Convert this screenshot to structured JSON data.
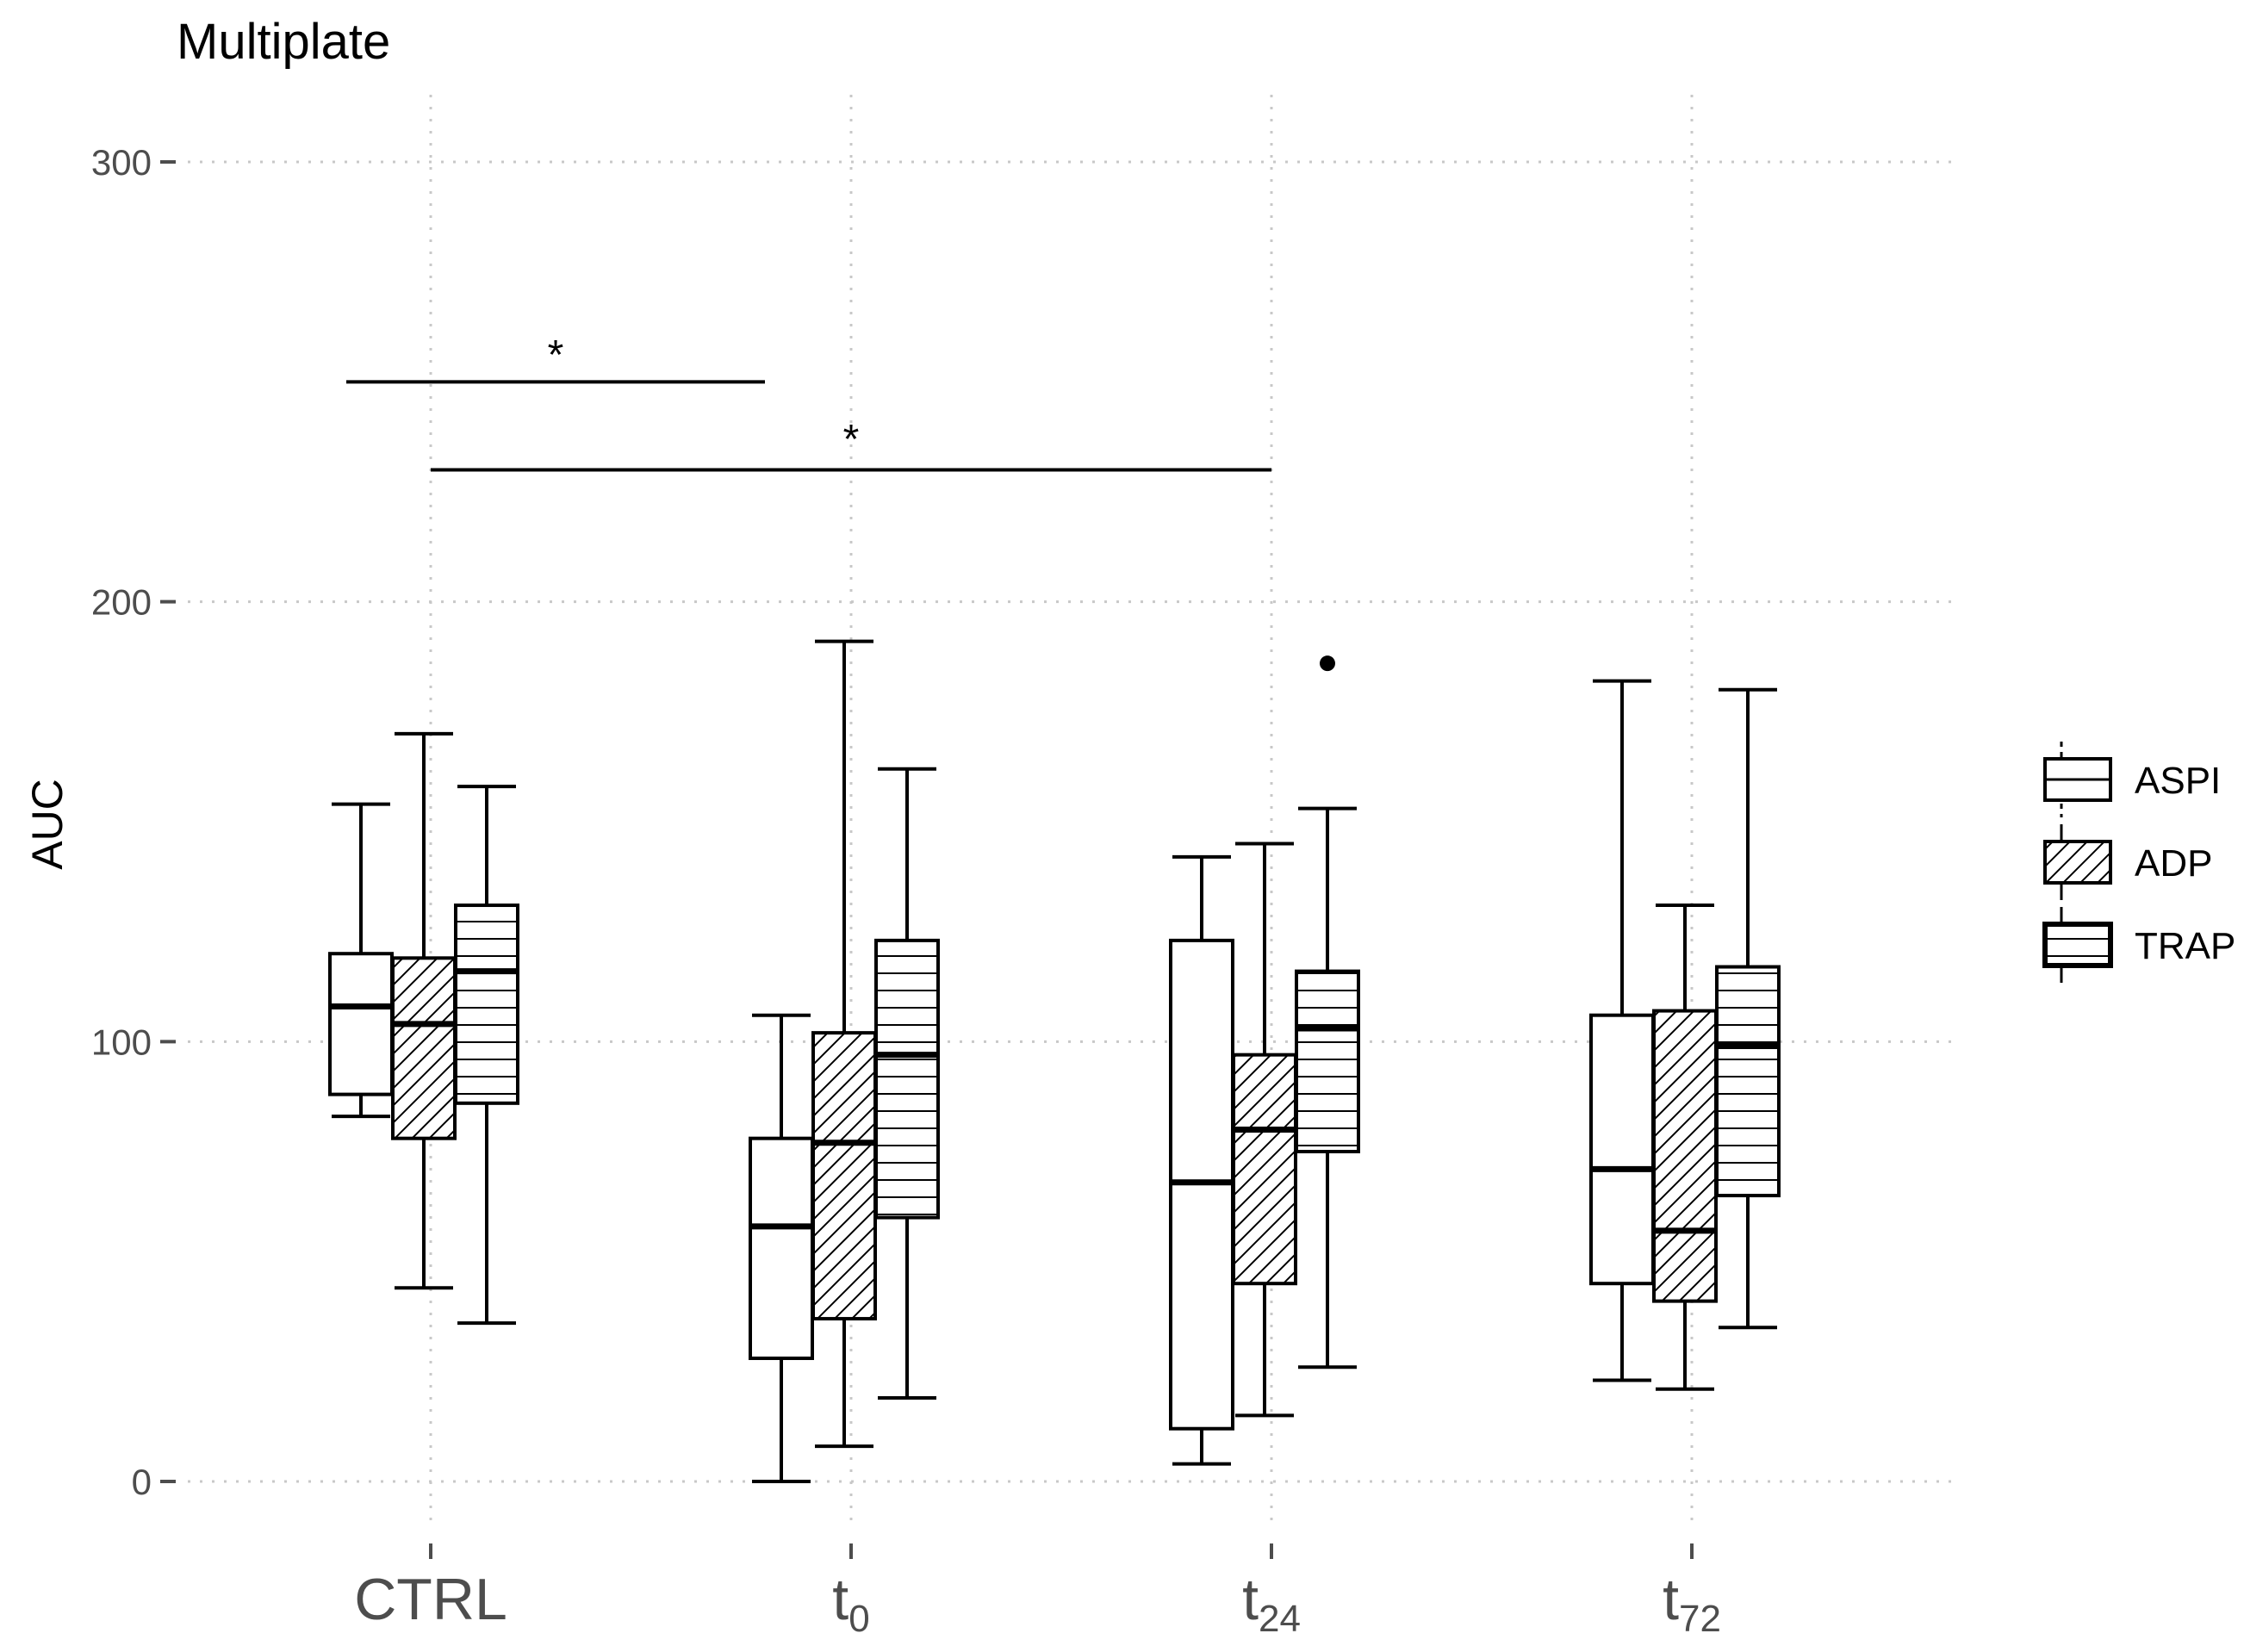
{
  "chart_data": {
    "type": "boxplot",
    "title": "Multiplate",
    "ylabel": "AUC",
    "xlabel": "",
    "ylim": [
      -12,
      318
    ],
    "yticks": [
      0,
      100,
      200,
      300
    ],
    "grid": true,
    "legend_position": "right",
    "groups": [
      {
        "label": "CTRL",
        "base": "CTRL",
        "sub": ""
      },
      {
        "label": "t0",
        "base": "t",
        "sub": "0"
      },
      {
        "label": "t24",
        "base": "t",
        "sub": "24"
      },
      {
        "label": "t72",
        "base": "t",
        "sub": "72"
      }
    ],
    "series": [
      {
        "name": "ASPI",
        "fill": "none",
        "boxes": [
          {
            "group": "CTRL",
            "min": 83,
            "q1": 88,
            "median": 108,
            "q3": 120,
            "max": 154,
            "outliers": []
          },
          {
            "group": "t0",
            "min": 0,
            "q1": 28,
            "median": 58,
            "q3": 78,
            "max": 106,
            "outliers": []
          },
          {
            "group": "t24",
            "min": 4,
            "q1": 12,
            "median": 68,
            "q3": 123,
            "max": 142,
            "outliers": []
          },
          {
            "group": "t72",
            "min": 23,
            "q1": 45,
            "median": 71,
            "q3": 106,
            "max": 182,
            "outliers": []
          }
        ]
      },
      {
        "name": "ADP",
        "fill": "diagonal-hatch",
        "boxes": [
          {
            "group": "CTRL",
            "min": 44,
            "q1": 78,
            "median": 104,
            "q3": 119,
            "max": 170,
            "outliers": []
          },
          {
            "group": "t0",
            "min": 8,
            "q1": 37,
            "median": 77,
            "q3": 102,
            "max": 191,
            "outliers": []
          },
          {
            "group": "t24",
            "min": 15,
            "q1": 45,
            "median": 80,
            "q3": 97,
            "max": 145,
            "outliers": []
          },
          {
            "group": "t72",
            "min": 21,
            "q1": 41,
            "median": 57,
            "q3": 107,
            "max": 131,
            "outliers": []
          }
        ]
      },
      {
        "name": "TRAP",
        "fill": "horizontal-lines",
        "boxes": [
          {
            "group": "CTRL",
            "min": 36,
            "q1": 86,
            "median": 116,
            "q3": 131,
            "max": 158,
            "outliers": []
          },
          {
            "group": "t0",
            "min": 19,
            "q1": 60,
            "median": 97,
            "q3": 123,
            "max": 162,
            "outliers": []
          },
          {
            "group": "t24",
            "min": 26,
            "q1": 75,
            "median": 103,
            "q3": 116,
            "max": 153,
            "outliers": [
              186
            ]
          },
          {
            "group": "t72",
            "min": 35,
            "q1": 65,
            "median": 99,
            "q3": 117,
            "max": 180,
            "outliers": []
          }
        ]
      }
    ],
    "annotations": [
      {
        "type": "significance",
        "label": "*",
        "from": "CTRL (ASPI)",
        "to": "t0 (ASPI)",
        "y": 250
      },
      {
        "type": "significance",
        "label": "*",
        "from": "CTRL",
        "to": "t24",
        "y": 230
      }
    ]
  }
}
